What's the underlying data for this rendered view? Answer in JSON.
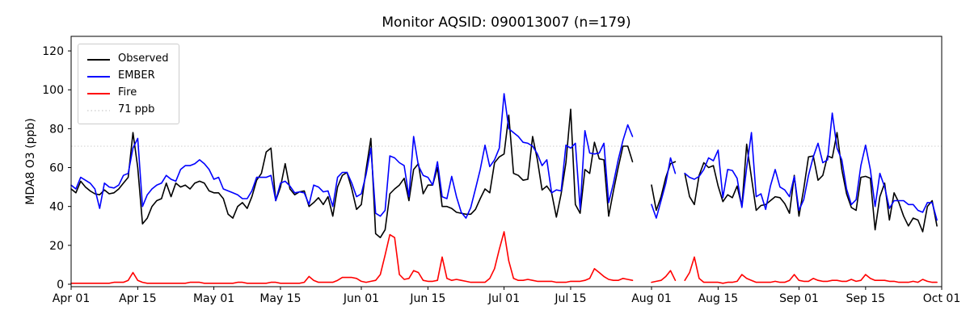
{
  "title": "Monitor AQSID: 090013007 (n=179)",
  "axes": {
    "ylabel": "MDA8 O3 (ppb)",
    "yticks": [
      0,
      20,
      40,
      60,
      80,
      100,
      120
    ],
    "xticks": [
      {
        "label": "Apr 01",
        "day": 0
      },
      {
        "label": "Apr 15",
        "day": 14
      },
      {
        "label": "May 01",
        "day": 30
      },
      {
        "label": "May 15",
        "day": 44
      },
      {
        "label": "Jun 01",
        "day": 61
      },
      {
        "label": "Jun 15",
        "day": 75
      },
      {
        "label": "Jul 01",
        "day": 91
      },
      {
        "label": "Jul 15",
        "day": 105
      },
      {
        "label": "Aug 01",
        "day": 122
      },
      {
        "label": "Aug 15",
        "day": 136
      },
      {
        "label": "Sep 01",
        "day": 153
      },
      {
        "label": "Sep 15",
        "day": 167
      },
      {
        "label": "Oct 01",
        "day": 183
      }
    ],
    "ylim": [
      -1.25,
      127.5
    ],
    "xlim_days": [
      0,
      183
    ],
    "grid": false,
    "box": true
  },
  "legend": [
    {
      "label": "Observed",
      "color": "#000000",
      "style": "solid"
    },
    {
      "label": "EMBER",
      "color": "#0000ff",
      "style": "solid"
    },
    {
      "label": "Fire",
      "color": "#ff0000",
      "style": "solid"
    },
    {
      "label": "71 ppb",
      "color": "#d3d3d3",
      "style": "dotted"
    }
  ],
  "chart_data": {
    "type": "line",
    "title": "Monitor AQSID: 090013007 (n=179)",
    "xlabel": "",
    "ylabel": "MDA8 O3 (ppb)",
    "x_start": "Apr 01",
    "x_end": "Sep 30",
    "frequency": "daily",
    "n_points": 179,
    "missing_days": [
      "Jul 29",
      "Jul 30",
      "Jul 31",
      "Aug 06"
    ],
    "threshold_line": {
      "value": 71,
      "label": "71 ppb",
      "color": "#d3d3d3",
      "style": "dotted"
    },
    "legend_position": "upper left",
    "series": [
      {
        "name": "Observed",
        "color": "#000000",
        "values": [
          49,
          47,
          53,
          50,
          48,
          46.5,
          46,
          48.5,
          46.5,
          47,
          49,
          52,
          55,
          78,
          60,
          31,
          34,
          40,
          43,
          44,
          52,
          45,
          52,
          50,
          51,
          49,
          52,
          53,
          52,
          48,
          47,
          47,
          44,
          36,
          34,
          40,
          42,
          39,
          45,
          53.5,
          57,
          68,
          70,
          43,
          50,
          62,
          49,
          46,
          47.5,
          48,
          40,
          42,
          44.5,
          41,
          45,
          35,
          50,
          56,
          57.5,
          49,
          38.5,
          41,
          59,
          75,
          26,
          24,
          28,
          46.5,
          49,
          51,
          54.5,
          43,
          59,
          62,
          46.5,
          51,
          51,
          60,
          40,
          40,
          39,
          37,
          36.5,
          36,
          36,
          38.5,
          44,
          49,
          47,
          62.5,
          65.5,
          67,
          87,
          57,
          56,
          53.5,
          54,
          76,
          64,
          48.5,
          50.5,
          47,
          34.5,
          46.5,
          62.5,
          90,
          41,
          36.5,
          59,
          57,
          73,
          64.5,
          64,
          35,
          48,
          60,
          71,
          71,
          63,
          null,
          null,
          null,
          51,
          38,
          45,
          55,
          62,
          63,
          null,
          57,
          45,
          41,
          56,
          62.5,
          60,
          61,
          50.5,
          42.5,
          46,
          44.5,
          50.5,
          40,
          72,
          55,
          38,
          40.5,
          41,
          43,
          45,
          44.5,
          41.5,
          36.5,
          56,
          35,
          49,
          65.5,
          66,
          53.5,
          56,
          66,
          65,
          78,
          59,
          46.5,
          39.5,
          38,
          55,
          55.5,
          54.5,
          28,
          45,
          52,
          33,
          47,
          42,
          35,
          30,
          34,
          33,
          27,
          40,
          43,
          30
        ]
      },
      {
        "name": "EMBER",
        "color": "#0000ff",
        "values": [
          51,
          49,
          55,
          53.5,
          52,
          49,
          39,
          52,
          50,
          49.5,
          51,
          56,
          57,
          70,
          75,
          40,
          46,
          49,
          51,
          52,
          56,
          54,
          53,
          59,
          61,
          61,
          62,
          64,
          62,
          59,
          54,
          55,
          49,
          48,
          47,
          46,
          44,
          44,
          48,
          55,
          55,
          55,
          56,
          43,
          52,
          53,
          50.5,
          47,
          47.5,
          47,
          41,
          51,
          50,
          47.5,
          48,
          40,
          55,
          57.5,
          57.5,
          52,
          45,
          46.5,
          56.5,
          70,
          36.5,
          35,
          38,
          66,
          65,
          62.5,
          61,
          45,
          76,
          61,
          56,
          55,
          51,
          63,
          45,
          44,
          55.5,
          45,
          37,
          34,
          39.5,
          49,
          59,
          71.5,
          60.5,
          64,
          70,
          98,
          80,
          78,
          76,
          73,
          72.5,
          71,
          67,
          61,
          64,
          47,
          48.5,
          48,
          71.5,
          70,
          72.5,
          38.5,
          79,
          67.5,
          67,
          67.5,
          72.5,
          42,
          52,
          64,
          74,
          82,
          76,
          null,
          null,
          null,
          41,
          34,
          43,
          52,
          65,
          57,
          null,
          57,
          55,
          54,
          55.5,
          59,
          65,
          63.5,
          69,
          44.5,
          59,
          58.5,
          54.5,
          39.5,
          60,
          78,
          45,
          46.5,
          38.5,
          50.5,
          59,
          50,
          48.5,
          45,
          55.5,
          38,
          43.5,
          56,
          65.5,
          72.5,
          62.5,
          64,
          88,
          70,
          64,
          49,
          41,
          43.5,
          61,
          71.5,
          59,
          40,
          57,
          50,
          39,
          43,
          43,
          43,
          41,
          41,
          38,
          37,
          42,
          42,
          33
        ]
      },
      {
        "name": "Fire",
        "color": "#ff0000",
        "values": [
          0.5,
          0.5,
          0.5,
          0.5,
          0.5,
          0.5,
          0.5,
          0.5,
          0.5,
          1,
          1,
          1,
          2,
          6,
          2,
          1,
          0.5,
          0.5,
          0.5,
          0.5,
          0.5,
          0.5,
          0.5,
          0.5,
          0.5,
          1,
          1,
          1,
          0.5,
          0.5,
          0.5,
          0.5,
          0.5,
          0.5,
          0.5,
          1,
          1,
          0.5,
          0.5,
          0.5,
          0.5,
          0.5,
          1,
          1,
          0.5,
          0.5,
          0.5,
          0.5,
          0.5,
          1,
          4,
          2,
          1,
          1,
          1,
          1,
          2,
          3.5,
          3.5,
          3.5,
          3,
          1.5,
          1,
          1.5,
          2,
          5,
          15,
          25.5,
          24,
          5,
          2.5,
          3,
          7,
          6,
          2,
          1.5,
          1.5,
          2,
          14,
          3,
          2,
          2.5,
          2,
          1.5,
          1,
          1,
          1,
          1,
          3,
          8,
          18,
          27,
          12,
          3,
          2,
          2,
          2.5,
          2,
          1.5,
          1.5,
          1.5,
          1.5,
          1,
          1,
          1,
          1.5,
          1.5,
          1.5,
          2,
          3,
          8,
          6,
          4,
          2.5,
          2,
          2,
          3,
          2.5,
          2,
          null,
          null,
          null,
          1,
          1.5,
          2,
          4,
          7,
          2,
          null,
          2,
          6,
          14,
          3,
          1,
          1,
          1,
          1,
          0.5,
          1,
          1,
          1.5,
          5,
          3,
          2,
          1,
          1,
          1,
          1,
          1.5,
          1,
          1,
          2,
          5,
          2,
          1.5,
          1.5,
          3,
          2,
          1.5,
          1.5,
          2,
          2,
          1.5,
          1.5,
          2.5,
          1.5,
          2,
          5,
          3,
          2,
          2,
          2,
          1.5,
          1.5,
          1,
          1,
          1,
          1.5,
          1,
          2.5,
          1.5,
          1,
          1
        ]
      }
    ]
  }
}
